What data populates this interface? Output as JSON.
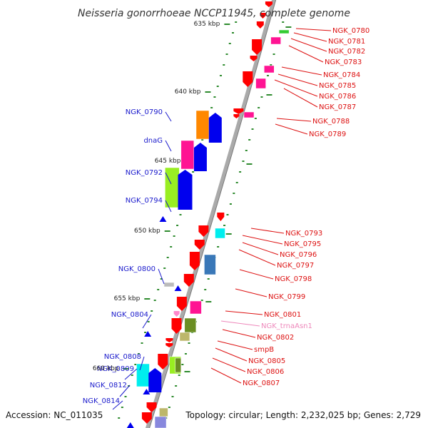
{
  "title": "Neisseria gonorrhoeae NCCP11945, complete genome",
  "footer": {
    "accession": "Accession: NC_011035",
    "topology": "Topology: circular; Length: 2,232,025 bp; Genes: 2,729"
  },
  "colors": {
    "backbone": "#aaaaaa",
    "tick": "#2e8b2e",
    "left_label": "#1a1acc",
    "right_label": "#dd1111",
    "trna_label": "#ee88bb",
    "red": "#ff0000",
    "blue": "#0000ee",
    "orange": "#ff8800",
    "magenta": "#ff1493",
    "lime": "#99ee22",
    "cyan": "#00eeee",
    "steel": "#3a78b8",
    "olive": "#6b8e23",
    "khaki": "#bdb76b",
    "green": "#33cc33",
    "grey": "#bbbbbb",
    "lavender": "#8888dd",
    "pink": "#ff88cc"
  },
  "scale_labels": [
    "635 kbp",
    "640 kbp",
    "645 kbp",
    "650 kbp",
    "655 kbp",
    "660 kbp"
  ],
  "left_labels": [
    "NGK_0790",
    "dnaG",
    "NGK_0792",
    "NGK_0794",
    "NGK_0800",
    "NGK_0804",
    "NGK_0808",
    "NGK_0809",
    "NGK_0812",
    "NGK_0814"
  ],
  "right_labels": [
    "NGK_0780",
    "NGK_0781",
    "NGK_0782",
    "NGK_0783",
    "NGK_0784",
    "NGK_0785",
    "NGK_0786",
    "NGK_0787",
    "NGK_0788",
    "NGK_0789",
    "NGK_0793",
    "NGK_0795",
    "NGK_0796",
    "NGK_0797",
    "NGK_0798",
    "NGK_0799",
    "NGK_0801",
    "NGK_trnaAsn1",
    "NGK_0802",
    "smpB",
    "NGK_0805",
    "NGK_0806",
    "NGK_0807"
  ]
}
